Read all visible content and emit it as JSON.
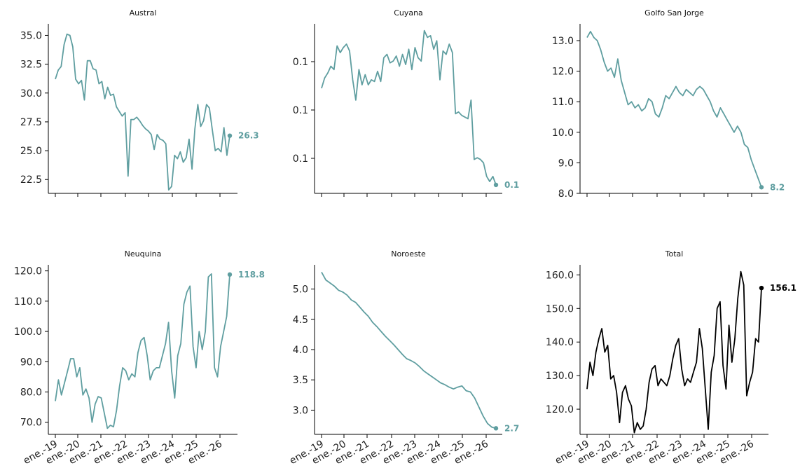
{
  "colors": {
    "series": "#5f9ea0",
    "total": "#000000"
  },
  "x_tick_labels": [
    "ene.-19",
    "ene.-20",
    "ene.-21",
    "ene.-22",
    "ene.-23",
    "ene.-24",
    "ene.-25",
    "ene.-26"
  ],
  "chart_data": [
    {
      "type": "line",
      "title": "Austral",
      "color": "#5f9ea0",
      "yticks": [
        "35.0",
        "32.5",
        "30.0",
        "27.5",
        "25.0",
        "22.5"
      ],
      "ylim": [
        21.3,
        36.0
      ],
      "x_tick_labels_visible": false,
      "end_label": "26.3",
      "series": [
        {
          "values": [
            31.2,
            32.0,
            32.3,
            34.2,
            35.1,
            35.0,
            34.0,
            31.2,
            30.8,
            31.1,
            29.4,
            32.8,
            32.8,
            32.1,
            32.0,
            30.8,
            31.0,
            29.5,
            30.5,
            29.8,
            29.9,
            28.8,
            28.4,
            28.0,
            28.3,
            22.8,
            27.7,
            27.7,
            27.9,
            27.6,
            27.2,
            26.9,
            26.7,
            26.4,
            25.1,
            26.4,
            26.0,
            25.9,
            25.6,
            21.6,
            21.9,
            24.6,
            24.3,
            24.9,
            24.0,
            24.4,
            26.0,
            23.4,
            26.9,
            29.0,
            27.1,
            27.6,
            29.0,
            28.7,
            26.8,
            25.0,
            25.2,
            24.9,
            27.0,
            24.6,
            26.3
          ]
        }
      ]
    },
    {
      "type": "line",
      "title": "Cuyana",
      "color": "#5f9ea0",
      "yticks": [
        "0.1",
        "0.1",
        "0.1"
      ],
      "ylim": [
        0,
        1
      ],
      "x_tick_labels_visible": false,
      "end_label": "0.1",
      "series": [
        {
          "values": [
            0.62,
            0.68,
            0.71,
            0.75,
            0.73,
            0.87,
            0.83,
            0.86,
            0.88,
            0.84,
            0.67,
            0.55,
            0.73,
            0.64,
            0.7,
            0.64,
            0.67,
            0.66,
            0.72,
            0.66,
            0.8,
            0.82,
            0.77,
            0.78,
            0.81,
            0.75,
            0.82,
            0.76,
            0.85,
            0.73,
            0.86,
            0.8,
            0.78,
            0.96,
            0.92,
            0.93,
            0.85,
            0.9,
            0.67,
            0.84,
            0.82,
            0.88,
            0.83,
            0.47,
            0.48,
            0.46,
            0.45,
            0.44,
            0.55,
            0.2,
            0.21,
            0.2,
            0.18,
            0.1,
            0.07,
            0.1,
            0.05
          ]
        }
      ]
    },
    {
      "type": "line",
      "title": "Golfo San Jorge",
      "color": "#5f9ea0",
      "yticks": [
        "13.0",
        "12.0",
        "11.0",
        "10.0",
        "9.0",
        "8.0"
      ],
      "ylim": [
        8.0,
        13.55
      ],
      "x_tick_labels_visible": false,
      "end_label": "8.2",
      "series": [
        {
          "values": [
            13.1,
            13.3,
            13.1,
            13.0,
            12.7,
            12.3,
            12.0,
            12.1,
            11.8,
            12.4,
            11.7,
            11.3,
            10.9,
            11.0,
            10.8,
            10.9,
            10.7,
            10.8,
            11.1,
            11.0,
            10.6,
            10.5,
            10.8,
            11.2,
            11.1,
            11.3,
            11.5,
            11.3,
            11.2,
            11.4,
            11.3,
            11.2,
            11.4,
            11.5,
            11.4,
            11.2,
            11.0,
            10.7,
            10.5,
            10.8,
            10.6,
            10.4,
            10.2,
            10.0,
            10.2,
            10.0,
            9.6,
            9.5,
            9.1,
            8.8,
            8.5,
            8.2
          ]
        }
      ]
    },
    {
      "type": "line",
      "title": "Neuquina",
      "color": "#5f9ea0",
      "yticks": [
        "120.0",
        "110.0",
        "100.0",
        "90.0",
        "80.0",
        "70.0"
      ],
      "ylim": [
        66.0,
        122.0
      ],
      "x_tick_labels_visible": true,
      "end_label": "118.8",
      "series": [
        {
          "values": [
            77.0,
            84.0,
            79.0,
            83.0,
            87.0,
            91.0,
            91.0,
            85.0,
            88.0,
            79.0,
            81.0,
            78.0,
            70.0,
            76.0,
            78.5,
            78.0,
            73.0,
            68.0,
            69.0,
            68.5,
            74.0,
            82.0,
            88.0,
            87.0,
            84.0,
            86.0,
            85.0,
            93.0,
            97.0,
            98.0,
            92.0,
            84.0,
            87.0,
            88.0,
            88.0,
            92.0,
            96.0,
            103.0,
            87.0,
            78.0,
            92.0,
            96.0,
            109.0,
            113.0,
            115.0,
            95.0,
            88.0,
            100.0,
            94.0,
            100.0,
            118.0,
            119.0,
            88.0,
            85.0,
            95.0,
            100.0,
            105.0,
            118.8
          ]
        }
      ]
    },
    {
      "type": "line",
      "title": "Noroeste",
      "color": "#5f9ea0",
      "yticks": [
        "5.0",
        "4.5",
        "4.0",
        "3.5",
        "3.0"
      ],
      "ylim": [
        2.6,
        5.4
      ],
      "x_tick_labels_visible": true,
      "end_label": "2.7",
      "series": [
        {
          "values": [
            5.28,
            5.15,
            5.1,
            5.05,
            4.98,
            4.95,
            4.9,
            4.82,
            4.78,
            4.7,
            4.62,
            4.55,
            4.45,
            4.38,
            4.3,
            4.22,
            4.15,
            4.08,
            4.0,
            3.92,
            3.85,
            3.82,
            3.78,
            3.72,
            3.65,
            3.6,
            3.55,
            3.5,
            3.45,
            3.42,
            3.38,
            3.35,
            3.38,
            3.4,
            3.32,
            3.3,
            3.2,
            3.05,
            2.9,
            2.78,
            2.72,
            2.7
          ]
        }
      ]
    },
    {
      "type": "line",
      "title": "Total",
      "color": "#000000",
      "yticks": [
        "160.0",
        "150.0",
        "140.0",
        "130.0",
        "120.0"
      ],
      "ylim": [
        112.5,
        163.0
      ],
      "x_tick_labels_visible": true,
      "end_label": "156.1",
      "series": [
        {
          "values": [
            126.0,
            134.0,
            130.0,
            137.0,
            141.0,
            144.0,
            137.0,
            139.0,
            129.0,
            130.0,
            125.0,
            116.0,
            125.0,
            127.0,
            123.0,
            121.0,
            113.0,
            116.0,
            114.0,
            115.0,
            120.0,
            128.0,
            132.0,
            133.0,
            127.0,
            129.0,
            128.0,
            127.0,
            130.0,
            135.0,
            139.0,
            141.0,
            132.0,
            127.0,
            129.0,
            128.0,
            131.0,
            134.0,
            144.0,
            138.0,
            126.0,
            114.0,
            131.0,
            136.0,
            150.0,
            152.0,
            133.0,
            126.0,
            145.0,
            134.0,
            141.0,
            153.0,
            161.0,
            157.0,
            124.0,
            128.0,
            131.0,
            141.0,
            140.0,
            156.1
          ]
        }
      ]
    }
  ]
}
